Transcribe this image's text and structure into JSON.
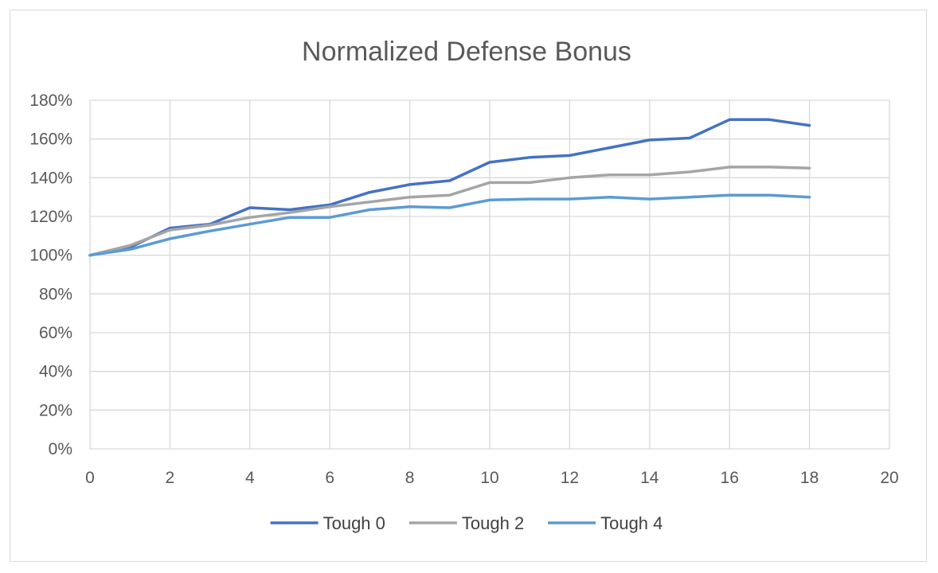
{
  "chart_data": {
    "type": "line",
    "title": "Normalized Defense Bonus",
    "xlabel": "",
    "ylabel": "",
    "xlim": [
      0,
      20
    ],
    "ylim": [
      0,
      1.8
    ],
    "x_ticks": [
      "0",
      "2",
      "4",
      "6",
      "8",
      "10",
      "12",
      "14",
      "16",
      "18",
      "20"
    ],
    "y_ticks": [
      "0%",
      "20%",
      "40%",
      "60%",
      "80%",
      "100%",
      "120%",
      "140%",
      "160%",
      "180%"
    ],
    "grid": true,
    "legend_position": "bottom",
    "x": [
      0,
      1,
      2,
      3,
      4,
      5,
      6,
      7,
      8,
      9,
      10,
      11,
      12,
      13,
      14,
      15,
      16,
      17,
      18
    ],
    "series": [
      {
        "name": "Tough 0",
        "color": "#4472C4",
        "values": [
          1.0,
          1.04,
          1.14,
          1.16,
          1.245,
          1.235,
          1.26,
          1.325,
          1.365,
          1.385,
          1.48,
          1.505,
          1.515,
          1.555,
          1.595,
          1.605,
          1.7,
          1.7,
          1.67
        ]
      },
      {
        "name": "Tough 2",
        "color": "#A5A5A5",
        "values": [
          1.0,
          1.05,
          1.13,
          1.155,
          1.195,
          1.22,
          1.25,
          1.275,
          1.3,
          1.31,
          1.375,
          1.375,
          1.4,
          1.415,
          1.415,
          1.43,
          1.455,
          1.455,
          1.45
        ]
      },
      {
        "name": "Tough 4",
        "color": "#5B9BD5",
        "values": [
          1.0,
          1.03,
          1.085,
          1.125,
          1.16,
          1.195,
          1.195,
          1.235,
          1.25,
          1.245,
          1.285,
          1.29,
          1.29,
          1.3,
          1.29,
          1.3,
          1.31,
          1.31,
          1.3
        ]
      }
    ]
  }
}
